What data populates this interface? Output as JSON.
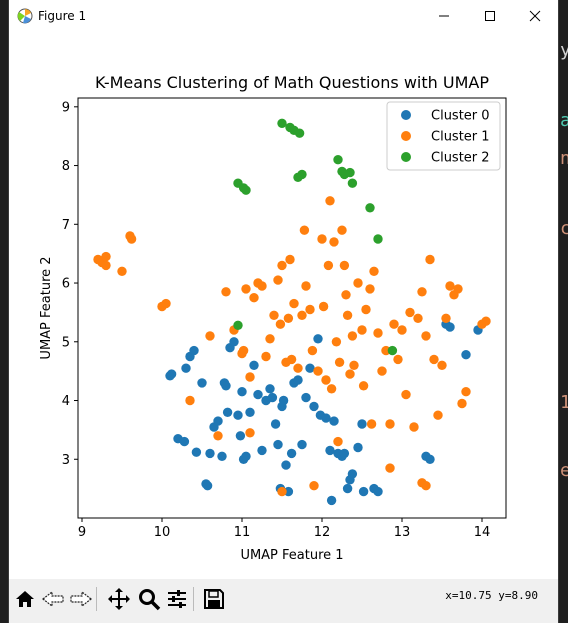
{
  "window": {
    "title": "Figure 1"
  },
  "toolbar": {
    "buttons": [
      "home-icon",
      "back-icon",
      "forward-icon",
      "pan-icon",
      "zoom-icon",
      "configure-subplots-icon",
      "save-icon"
    ],
    "coords": "x=10.75 y=8.90"
  },
  "colors": {
    "cluster0": "#1f77b4",
    "cluster1": "#ff7f0e",
    "cluster2": "#2ca02c"
  },
  "chart_data": {
    "type": "scatter",
    "title": "K-Means Clustering of Math Questions with UMAP",
    "xlabel": "UMAP Feature 1",
    "ylabel": "UMAP Feature 2",
    "xlim": [
      8.95,
      14.3
    ],
    "ylim": [
      2.0,
      9.15
    ],
    "xticks": [
      "9",
      "10",
      "11",
      "12",
      "13",
      "14"
    ],
    "yticks": [
      "3",
      "4",
      "5",
      "6",
      "7",
      "8",
      "9"
    ],
    "legend_position": "top-right",
    "series": [
      {
        "name": "Cluster 0",
        "points": [
          [
            10.1,
            4.42
          ],
          [
            10.12,
            4.45
          ],
          [
            10.2,
            3.35
          ],
          [
            10.28,
            3.3
          ],
          [
            10.3,
            4.55
          ],
          [
            10.35,
            4.75
          ],
          [
            10.4,
            4.85
          ],
          [
            10.43,
            3.12
          ],
          [
            10.5,
            4.3
          ],
          [
            10.55,
            2.58
          ],
          [
            10.57,
            2.55
          ],
          [
            10.6,
            3.1
          ],
          [
            10.65,
            3.55
          ],
          [
            10.7,
            3.65
          ],
          [
            10.75,
            3.05
          ],
          [
            10.78,
            4.3
          ],
          [
            10.8,
            4.25
          ],
          [
            10.82,
            3.8
          ],
          [
            10.85,
            4.9
          ],
          [
            10.9,
            5.0
          ],
          [
            10.95,
            3.75
          ],
          [
            10.98,
            3.4
          ],
          [
            11.0,
            4.15
          ],
          [
            11.02,
            3.0
          ],
          [
            11.05,
            3.05
          ],
          [
            11.1,
            3.8
          ],
          [
            11.15,
            4.6
          ],
          [
            11.2,
            4.1
          ],
          [
            11.25,
            3.15
          ],
          [
            11.3,
            4.0
          ],
          [
            11.35,
            4.2
          ],
          [
            11.38,
            4.05
          ],
          [
            11.42,
            3.6
          ],
          [
            11.45,
            3.25
          ],
          [
            11.48,
            2.5
          ],
          [
            11.5,
            3.9
          ],
          [
            11.52,
            4.0
          ],
          [
            11.55,
            2.9
          ],
          [
            11.58,
            2.45
          ],
          [
            11.62,
            3.1
          ],
          [
            11.65,
            4.3
          ],
          [
            11.7,
            4.35
          ],
          [
            11.75,
            3.25
          ],
          [
            11.8,
            4.05
          ],
          [
            11.85,
            4.55
          ],
          [
            11.9,
            3.9
          ],
          [
            11.95,
            5.05
          ],
          [
            11.98,
            3.75
          ],
          [
            12.05,
            3.7
          ],
          [
            12.1,
            3.15
          ],
          [
            12.12,
            2.3
          ],
          [
            12.15,
            3.65
          ],
          [
            12.2,
            3.1
          ],
          [
            12.25,
            3.05
          ],
          [
            12.28,
            3.1
          ],
          [
            12.32,
            2.5
          ],
          [
            12.35,
            2.65
          ],
          [
            12.38,
            2.75
          ],
          [
            12.45,
            3.2
          ],
          [
            12.5,
            3.6
          ],
          [
            12.52,
            2.45
          ],
          [
            12.65,
            2.5
          ],
          [
            12.7,
            2.45
          ],
          [
            13.3,
            3.05
          ],
          [
            13.35,
            3.0
          ],
          [
            13.55,
            5.3
          ],
          [
            13.6,
            5.25
          ],
          [
            13.8,
            4.78
          ],
          [
            13.95,
            5.2
          ]
        ]
      },
      {
        "name": "Cluster 1",
        "points": [
          [
            9.2,
            6.4
          ],
          [
            9.25,
            6.35
          ],
          [
            9.3,
            6.3
          ],
          [
            9.3,
            6.45
          ],
          [
            9.5,
            6.2
          ],
          [
            9.6,
            6.8
          ],
          [
            9.62,
            6.75
          ],
          [
            10.0,
            5.6
          ],
          [
            10.05,
            5.65
          ],
          [
            10.35,
            4.0
          ],
          [
            10.6,
            5.1
          ],
          [
            10.7,
            3.4
          ],
          [
            10.8,
            5.85
          ],
          [
            10.9,
            5.2
          ],
          [
            11.0,
            4.8
          ],
          [
            11.02,
            4.85
          ],
          [
            11.05,
            5.9
          ],
          [
            11.1,
            4.4
          ],
          [
            11.15,
            5.75
          ],
          [
            11.2,
            6.0
          ],
          [
            11.25,
            5.95
          ],
          [
            11.3,
            4.75
          ],
          [
            11.35,
            5.05
          ],
          [
            11.4,
            5.45
          ],
          [
            11.45,
            6.05
          ],
          [
            11.48,
            5.3
          ],
          [
            11.5,
            6.3
          ],
          [
            11.55,
            4.65
          ],
          [
            11.58,
            5.4
          ],
          [
            11.6,
            6.4
          ],
          [
            11.62,
            4.7
          ],
          [
            11.65,
            5.65
          ],
          [
            11.7,
            4.55
          ],
          [
            11.75,
            5.45
          ],
          [
            11.78,
            6.9
          ],
          [
            11.8,
            5.95
          ],
          [
            11.85,
            5.55
          ],
          [
            11.88,
            4.85
          ],
          [
            11.9,
            2.55
          ],
          [
            11.95,
            4.5
          ],
          [
            12.0,
            6.75
          ],
          [
            12.02,
            5.6
          ],
          [
            12.05,
            4.35
          ],
          [
            12.08,
            6.3
          ],
          [
            12.1,
            7.4
          ],
          [
            12.12,
            4.2
          ],
          [
            12.15,
            6.7
          ],
          [
            12.18,
            5.0
          ],
          [
            12.2,
            3.3
          ],
          [
            12.22,
            4.65
          ],
          [
            12.25,
            6.9
          ],
          [
            12.28,
            6.3
          ],
          [
            12.3,
            5.8
          ],
          [
            12.32,
            5.45
          ],
          [
            12.35,
            4.45
          ],
          [
            12.38,
            5.1
          ],
          [
            12.4,
            4.6
          ],
          [
            12.45,
            6.0
          ],
          [
            12.5,
            5.2
          ],
          [
            12.52,
            4.25
          ],
          [
            12.55,
            5.55
          ],
          [
            12.6,
            5.9
          ],
          [
            12.62,
            3.6
          ],
          [
            12.65,
            6.2
          ],
          [
            12.7,
            5.15
          ],
          [
            12.75,
            4.5
          ],
          [
            12.8,
            4.85
          ],
          [
            12.85,
            3.6
          ],
          [
            12.9,
            5.3
          ],
          [
            12.95,
            4.7
          ],
          [
            13.0,
            5.2
          ],
          [
            13.05,
            4.1
          ],
          [
            13.1,
            5.5
          ],
          [
            13.15,
            3.55
          ],
          [
            13.2,
            5.4
          ],
          [
            13.25,
            5.85
          ],
          [
            13.3,
            5.1
          ],
          [
            13.35,
            6.4
          ],
          [
            13.4,
            4.7
          ],
          [
            13.45,
            3.75
          ],
          [
            13.5,
            4.6
          ],
          [
            13.55,
            5.4
          ],
          [
            13.6,
            5.95
          ],
          [
            13.65,
            5.8
          ],
          [
            13.7,
            5.9
          ],
          [
            13.75,
            3.95
          ],
          [
            13.8,
            4.15
          ],
          [
            14.0,
            5.3
          ],
          [
            14.05,
            5.35
          ],
          [
            12.85,
            2.85
          ],
          [
            13.25,
            2.6
          ],
          [
            13.3,
            2.55
          ],
          [
            11.5,
            2.45
          ],
          [
            11.1,
            3.45
          ]
        ]
      },
      {
        "name": "Cluster 2",
        "points": [
          [
            10.95,
            5.28
          ],
          [
            10.95,
            7.7
          ],
          [
            11.02,
            7.62
          ],
          [
            11.05,
            7.58
          ],
          [
            11.5,
            8.72
          ],
          [
            11.6,
            8.65
          ],
          [
            11.65,
            8.6
          ],
          [
            11.72,
            8.55
          ],
          [
            11.7,
            7.8
          ],
          [
            11.75,
            7.85
          ],
          [
            12.2,
            8.1
          ],
          [
            12.25,
            7.9
          ],
          [
            12.28,
            7.85
          ],
          [
            12.35,
            7.88
          ],
          [
            12.38,
            7.7
          ],
          [
            12.6,
            7.28
          ],
          [
            12.7,
            6.75
          ],
          [
            12.88,
            4.85
          ]
        ]
      }
    ]
  }
}
